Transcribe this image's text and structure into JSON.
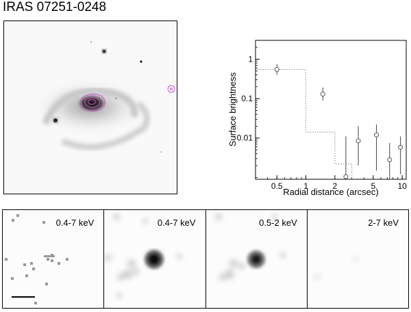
{
  "title": "IRAS 07251-0248",
  "optical_image": {
    "contour_color": "#d050d0"
  },
  "chart_data": {
    "type": "scatter",
    "title": "",
    "xlabel": "Radial distance (arcsec)",
    "ylabel": "Surface brightness",
    "xscale": "log",
    "yscale": "log",
    "xlim": [
      0.3,
      11
    ],
    "ylim": [
      0.0009,
      3
    ],
    "x_ticks": [
      0.5,
      1,
      2,
      5,
      10
    ],
    "x_tick_labels": [
      "0.5",
      "1",
      "2",
      "5",
      "10"
    ],
    "y_ticks": [
      0.01,
      0.1,
      1
    ],
    "y_tick_labels": [
      "0.01",
      "0.1",
      "1"
    ],
    "grid": false,
    "series": [
      {
        "style": "open-circles-with-error-bars",
        "points": [
          {
            "x": 0.5,
            "y": 0.55,
            "ylo": 0.4,
            "yhi": 0.75
          },
          {
            "x": 1.5,
            "y": 0.13,
            "ylo": 0.09,
            "yhi": 0.19
          },
          {
            "x": 2.6,
            "y": 0.00105,
            "ylo": 0.0009,
            "yhi": 0.011
          },
          {
            "x": 3.5,
            "y": 0.0085,
            "ylo": 0.002,
            "yhi": 0.02
          },
          {
            "x": 5.4,
            "y": 0.012,
            "ylo": 0.0015,
            "yhi": 0.022
          },
          {
            "x": 7.4,
            "y": 0.0028,
            "ylo": 0.0009,
            "yhi": 0.0075
          },
          {
            "x": 9.6,
            "y": 0.0058,
            "ylo": 0.0012,
            "yhi": 0.011
          }
        ]
      },
      {
        "style": "dotted-step",
        "points": [
          {
            "x": 0.3,
            "y": 0.55
          },
          {
            "x": 1.0,
            "y": 0.55
          },
          {
            "x": 1.0,
            "y": 0.014
          },
          {
            "x": 2.0,
            "y": 0.014
          },
          {
            "x": 2.0,
            "y": 0.0022
          },
          {
            "x": 3.0,
            "y": 0.0022
          },
          {
            "x": 3.0,
            "y": 0.0009
          }
        ]
      }
    ]
  },
  "panels": [
    {
      "label": "0.4-7 keV"
    },
    {
      "label": "0.4-7 keV"
    },
    {
      "label": "0.5-2 keV"
    },
    {
      "label": "2-7 keV"
    }
  ]
}
